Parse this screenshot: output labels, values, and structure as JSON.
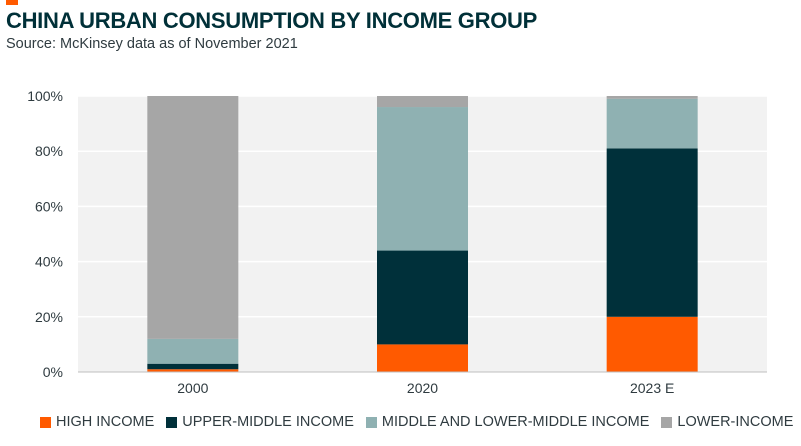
{
  "header": {
    "title": "CHINA URBAN CONSUMPTION BY INCOME GROUP",
    "subtitle": "Source: McKinsey data as of November 2021",
    "accent_color": "#ff5a00"
  },
  "chart_data": {
    "type": "bar",
    "stacked": true,
    "categories": [
      "2000",
      "2020",
      "2023 E"
    ],
    "series": [
      {
        "name": "HIGH INCOME",
        "color": "#ff5a00",
        "values": [
          1,
          10,
          20
        ]
      },
      {
        "name": "UPPER-MIDDLE INCOME",
        "color": "#00303a",
        "values": [
          2,
          34,
          61
        ]
      },
      {
        "name": "MIDDLE AND LOWER-MIDDLE INCOME",
        "color": "#8fb1b2",
        "values": [
          9,
          52,
          18
        ]
      },
      {
        "name": "LOWER-INCOME",
        "color": "#a6a6a6",
        "values": [
          88,
          4,
          1
        ]
      }
    ],
    "y_ticks": [
      "0%",
      "20%",
      "40%",
      "60%",
      "80%",
      "100%"
    ],
    "ylim": [
      0,
      100
    ],
    "grid": true,
    "legend_position": "bottom"
  }
}
